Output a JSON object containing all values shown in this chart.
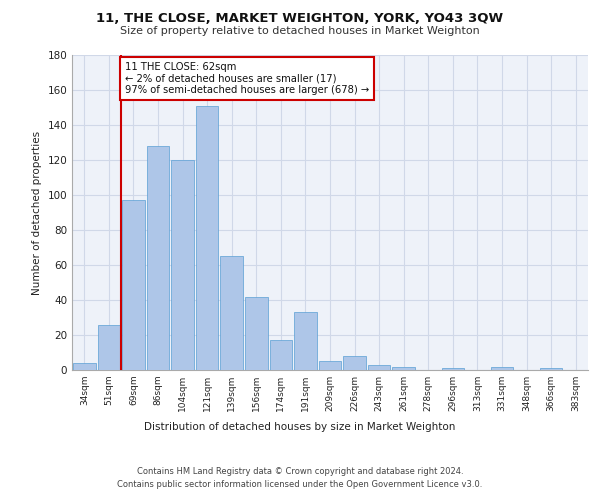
{
  "title": "11, THE CLOSE, MARKET WEIGHTON, YORK, YO43 3QW",
  "subtitle": "Size of property relative to detached houses in Market Weighton",
  "xlabel": "Distribution of detached houses by size in Market Weighton",
  "ylabel": "Number of detached properties",
  "categories": [
    "34sqm",
    "51sqm",
    "69sqm",
    "86sqm",
    "104sqm",
    "121sqm",
    "139sqm",
    "156sqm",
    "174sqm",
    "191sqm",
    "209sqm",
    "226sqm",
    "243sqm",
    "261sqm",
    "278sqm",
    "296sqm",
    "313sqm",
    "331sqm",
    "348sqm",
    "366sqm",
    "383sqm"
  ],
  "values": [
    4,
    26,
    97,
    128,
    120,
    151,
    65,
    42,
    17,
    33,
    5,
    8,
    3,
    2,
    0,
    1,
    0,
    2,
    0,
    1,
    0
  ],
  "bar_color": "#aec6e8",
  "bar_edge_color": "#5a9fd4",
  "annotation_text": "11 THE CLOSE: 62sqm\n← 2% of detached houses are smaller (17)\n97% of semi-detached houses are larger (678) →",
  "annotation_box_color": "#ffffff",
  "annotation_box_edge": "#cc0000",
  "red_line_x": 1.5,
  "ylim": [
    0,
    180
  ],
  "yticks": [
    0,
    20,
    40,
    60,
    80,
    100,
    120,
    140,
    160,
    180
  ],
  "grid_color": "#d0d8e8",
  "background_color": "#eef2f9",
  "footer_line1": "Contains HM Land Registry data © Crown copyright and database right 2024.",
  "footer_line2": "Contains public sector information licensed under the Open Government Licence v3.0."
}
